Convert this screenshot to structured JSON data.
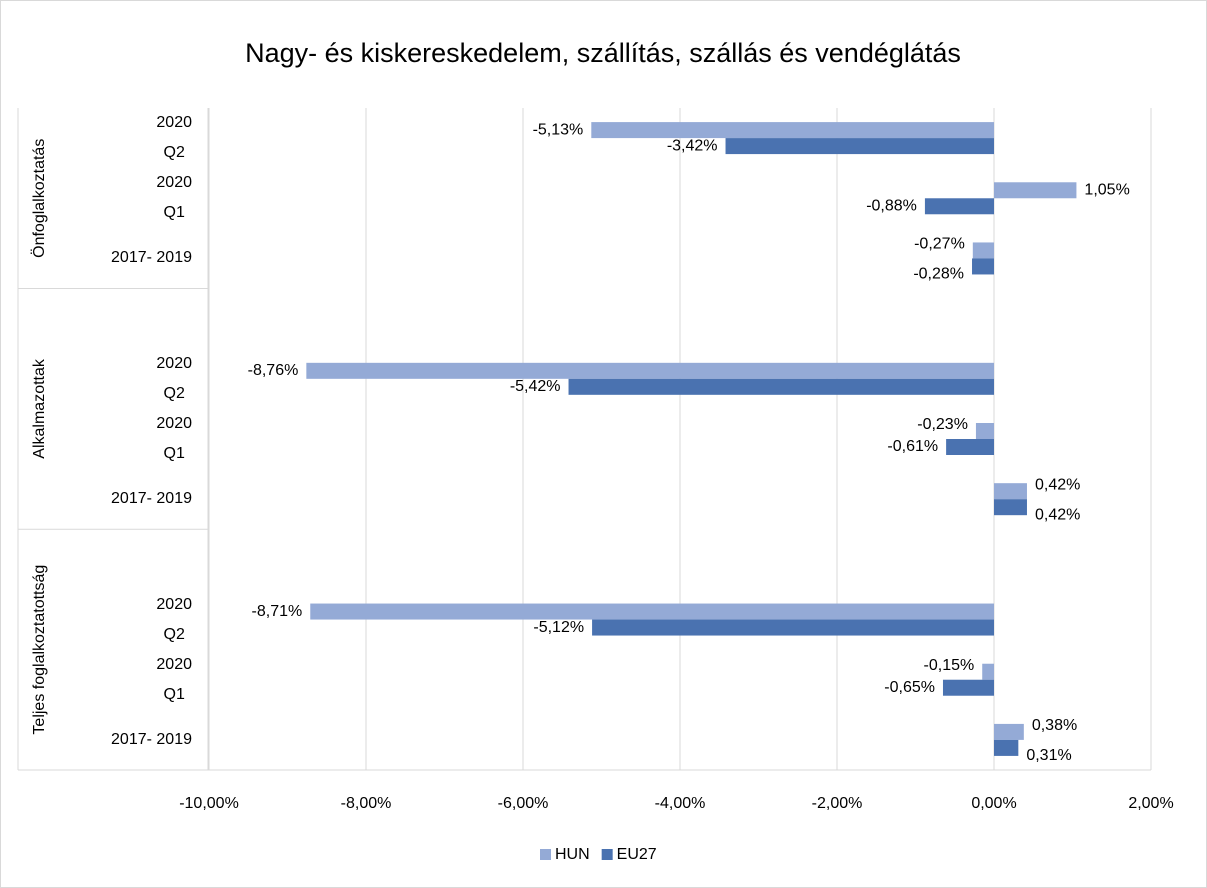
{
  "chart_data": {
    "type": "bar",
    "orientation": "horizontal",
    "title": "Nagy- és kiskereskedelem, szállítás, szállás és vendéglátás",
    "groups": [
      {
        "name": "Önfoglalkoztatás",
        "categories": [
          "2020\nQ2",
          "2020\nQ1",
          "2017- 2019"
        ]
      },
      {
        "name": "Alkalmazottak",
        "categories": [
          "2020\nQ2",
          "2020\nQ1",
          "2017- 2019"
        ]
      },
      {
        "name": "Teljes foglalkoztatottság",
        "categories": [
          "2020\nQ2",
          "2020\nQ1",
          "2017- 2019"
        ]
      }
    ],
    "series": [
      {
        "name": "HUN",
        "color": "#94aad6",
        "values": [
          -5.13,
          1.05,
          -0.27,
          -8.76,
          -0.23,
          0.42,
          -8.71,
          -0.15,
          0.38
        ],
        "value_labels": [
          "-5,13%",
          "1,05%",
          "-0,27%",
          "-8,76%",
          "-0,23%",
          "0,42%",
          "-8,71%",
          "-0,15%",
          "0,38%"
        ]
      },
      {
        "name": "EU27",
        "color": "#4a72b0",
        "values": [
          -3.42,
          -0.88,
          -0.28,
          -5.42,
          -0.61,
          0.42,
          -5.12,
          -0.65,
          0.31
        ],
        "value_labels": [
          "-3,42%",
          "-0,88%",
          "-0,28%",
          "-5,42%",
          "-0,61%",
          "0,42%",
          "-5,12%",
          "-0,65%",
          "0,31%"
        ]
      }
    ],
    "xlim": [
      -10,
      2
    ],
    "xticks": [
      {
        "value": -10,
        "label": "-10,00%"
      },
      {
        "value": -8,
        "label": "-8,00%"
      },
      {
        "value": -6,
        "label": "-6,00%"
      },
      {
        "value": -4,
        "label": "-4,00%"
      },
      {
        "value": -2,
        "label": "-2,00%"
      },
      {
        "value": 0,
        "label": "0,00%"
      },
      {
        "value": 2,
        "label": "2,00%"
      }
    ],
    "grid": true,
    "legend": "bottom"
  }
}
